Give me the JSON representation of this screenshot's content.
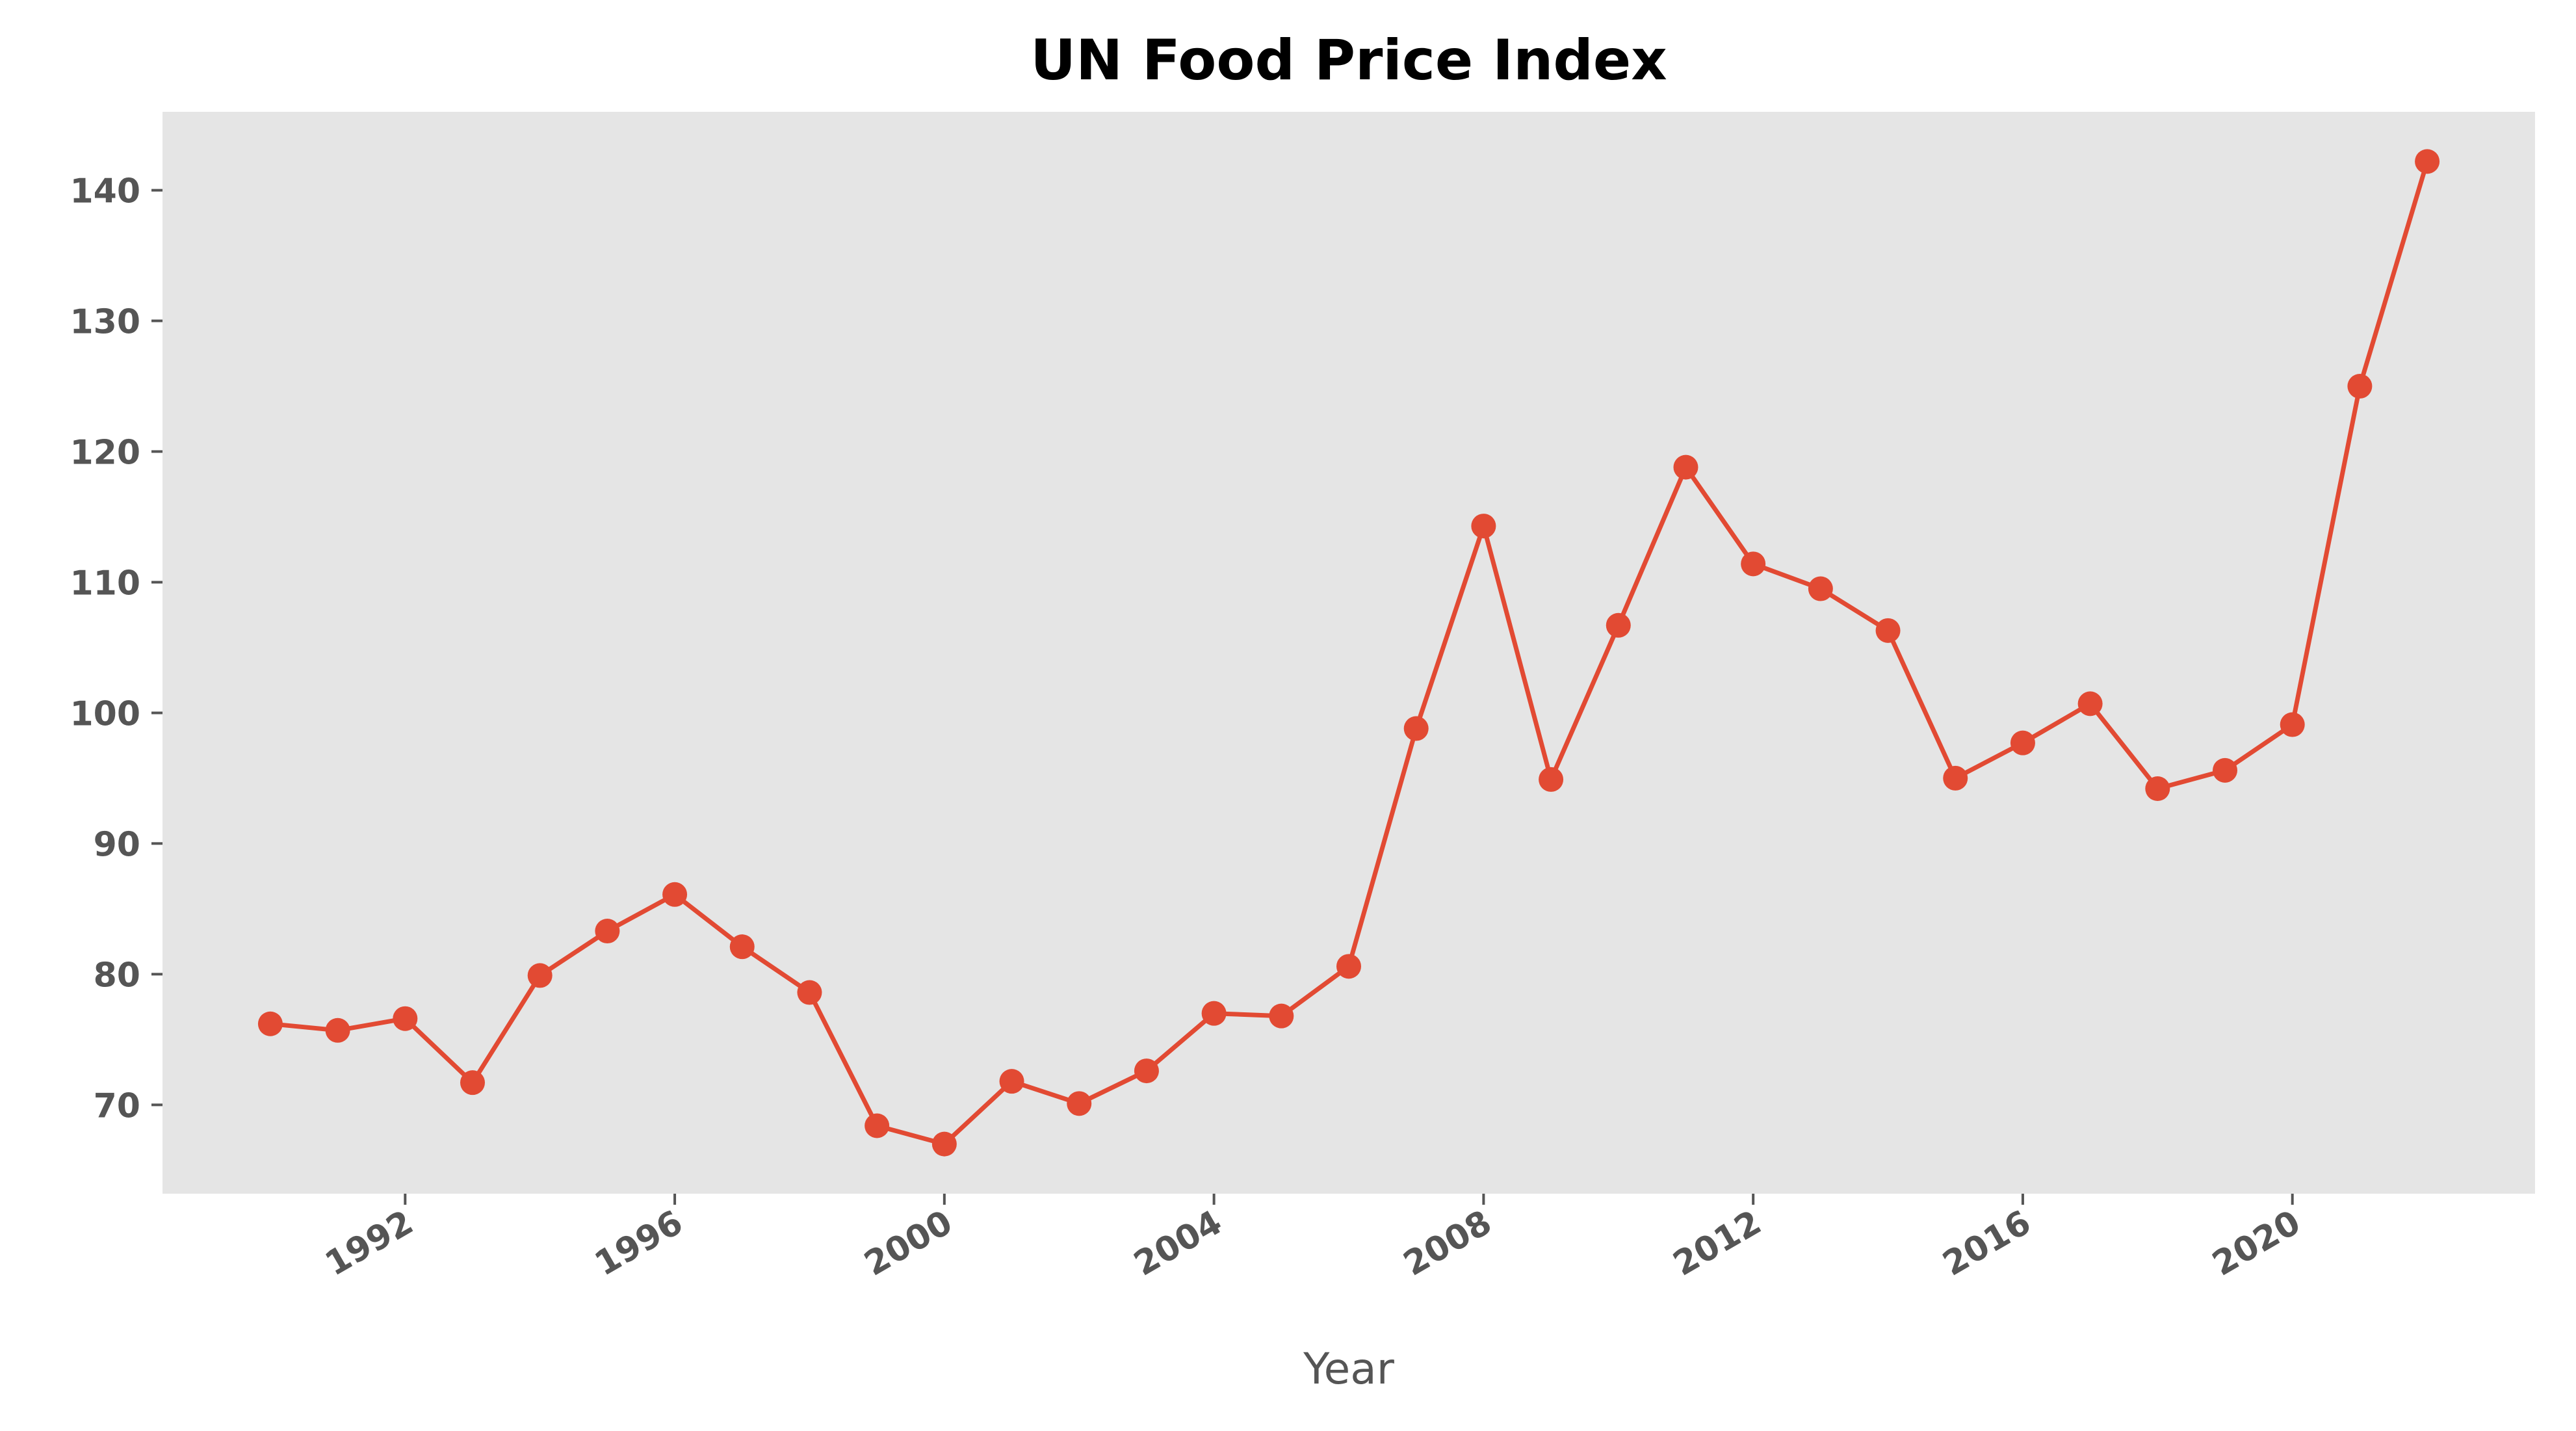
{
  "chart_data": {
    "type": "line",
    "title": "UN Food Price Index",
    "xlabel": "Year",
    "ylabel": "",
    "x": [
      1990,
      1991,
      1992,
      1993,
      1994,
      1995,
      1996,
      1997,
      1998,
      1999,
      2000,
      2001,
      2002,
      2003,
      2004,
      2005,
      2006,
      2007,
      2008,
      2009,
      2010,
      2011,
      2012,
      2013,
      2014,
      2015,
      2016,
      2017,
      2018,
      2019,
      2020,
      2021,
      2022
    ],
    "series": [
      {
        "values": [
          76.2,
          75.7,
          76.6,
          71.7,
          79.9,
          83.3,
          86.1,
          82.1,
          78.6,
          68.4,
          67.0,
          71.8,
          70.1,
          72.6,
          77.0,
          76.8,
          80.6,
          98.8,
          114.3,
          94.9,
          106.7,
          118.8,
          111.4,
          109.5,
          106.3,
          95.0,
          97.7,
          100.7,
          94.2,
          95.6,
          99.1,
          125.0,
          142.2
        ]
      }
    ],
    "xticks": [
      "1992",
      "1996",
      "2000",
      "2004",
      "2008",
      "2012",
      "2016",
      "2020"
    ],
    "yticks": [
      "70",
      "80",
      "90",
      "100",
      "110",
      "120",
      "130",
      "140"
    ],
    "xlim": [
      1988.4,
      2023.6
    ],
    "ylim": [
      63.2,
      146.0
    ],
    "grid": false,
    "colors": {
      "line": "#E24A33",
      "plot_background": "#E5E5E5",
      "tick_text": "#555555",
      "title_text": "#000000"
    }
  }
}
